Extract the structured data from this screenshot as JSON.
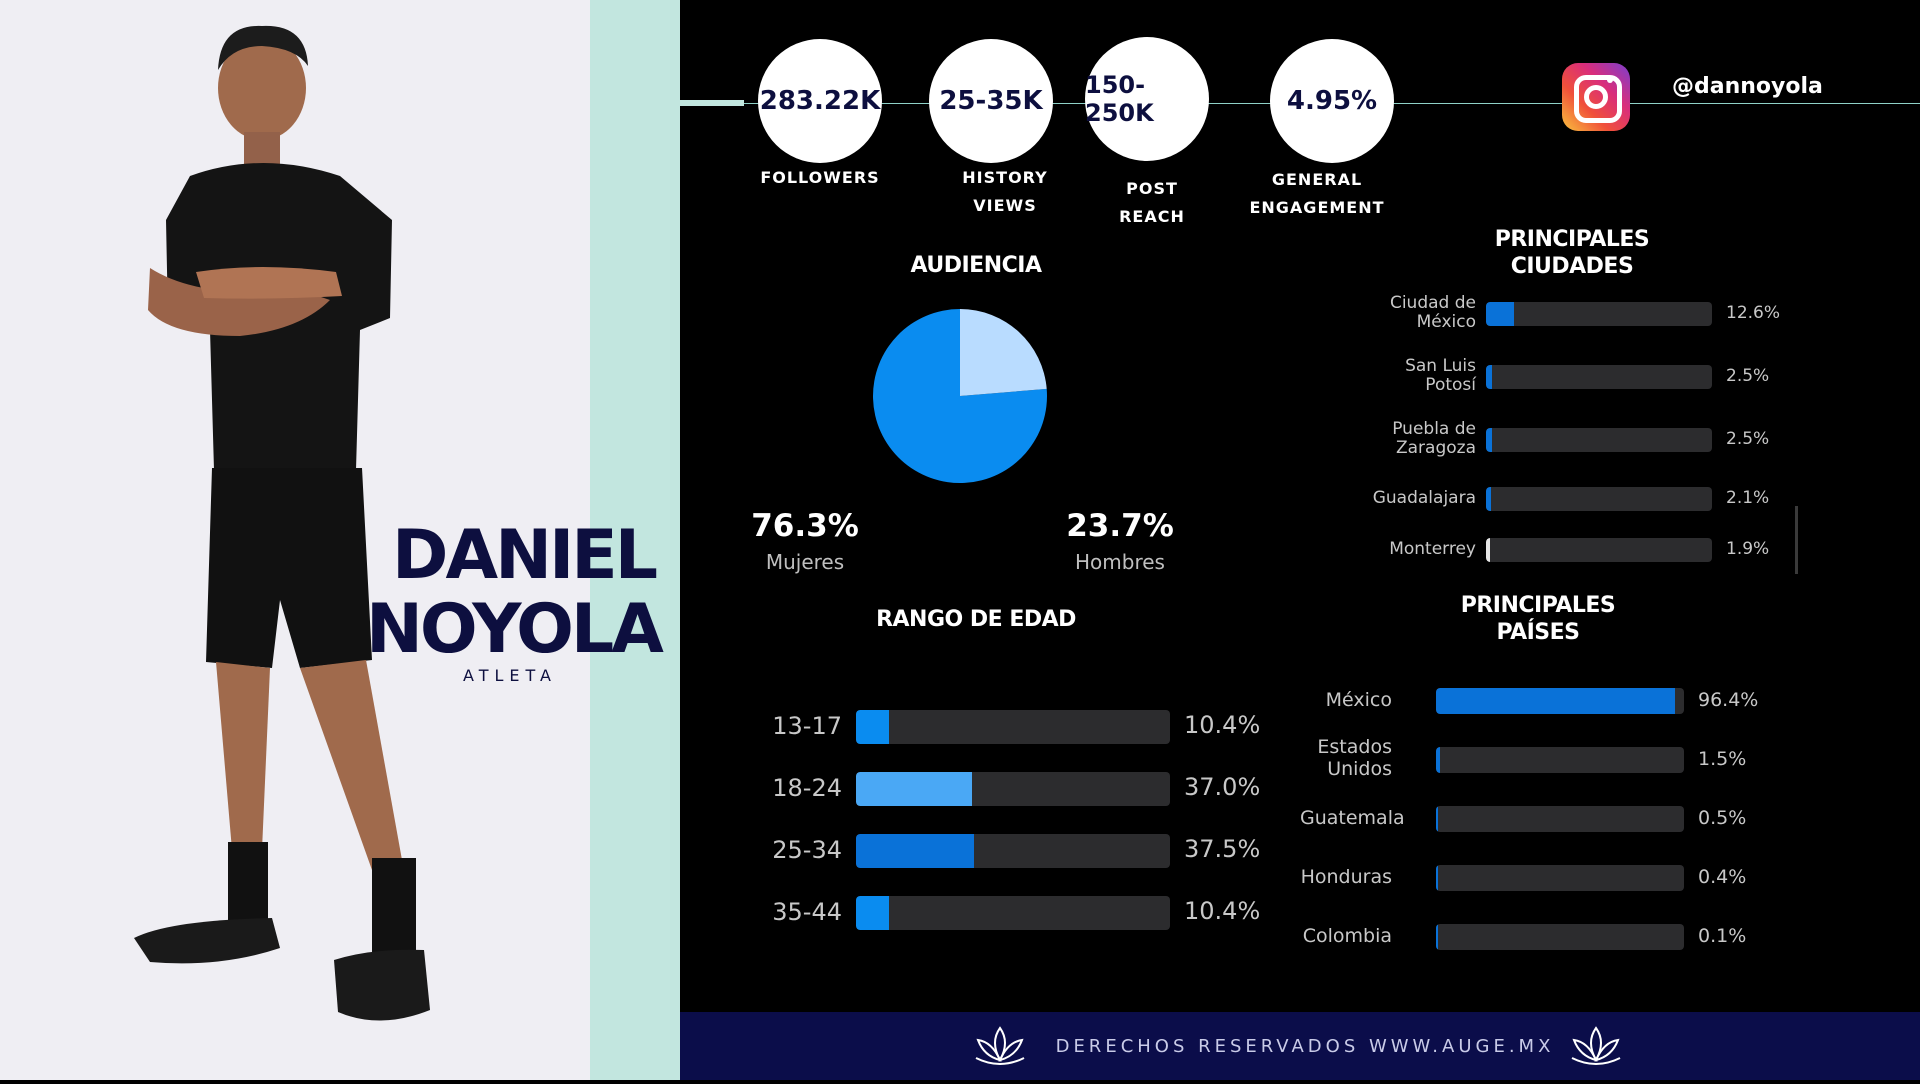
{
  "person": {
    "first_name": "DANIEL",
    "last_name": "NOYOLA",
    "role": "ATLETA"
  },
  "stats": [
    {
      "value": "283.22K",
      "label_lines": [
        "FOLLOWERS"
      ]
    },
    {
      "value": "25-35K",
      "label_lines": [
        "HISTORY",
        "VIEWS"
      ]
    },
    {
      "value": "150-250K",
      "label_lines": [
        "POST",
        "REACH"
      ]
    },
    {
      "value": "4.95%",
      "label_lines": [
        "GENERAL",
        "ENGAGEMENT"
      ]
    }
  ],
  "instagram": {
    "handle": "@dannoyola",
    "icon": "instagram-icon"
  },
  "audience": {
    "title": "AUDIENCIA",
    "women": {
      "percent": "76.3%",
      "label": "Mujeres"
    },
    "men": {
      "percent": "23.7%",
      "label": "Hombres"
    }
  },
  "age_range": {
    "title": "RANGO DE EDAD"
  },
  "cities": {
    "title_lines": [
      "PRINCIPALES",
      "CIUDADES"
    ]
  },
  "countries": {
    "title_lines": [
      "PRINCIPALES",
      "PAÍSES"
    ]
  },
  "footer": {
    "text": "DERECHOS RESERVADOS WWW.AUGE.MX",
    "icon": "lotus-icon"
  },
  "colors": {
    "accent_blue": "#0a8cf0",
    "light_blue": "#b9dcff",
    "navy": "#0d0f3f",
    "mint": "#c2e6df",
    "track": "#2c2c2e"
  },
  "chart_data": [
    {
      "type": "pie",
      "title": "AUDIENCIA",
      "categories": [
        "Mujeres",
        "Hombres"
      ],
      "values": [
        76.3,
        23.7
      ],
      "colors": [
        "#0a8cf0",
        "#b9dcff"
      ]
    },
    {
      "type": "bar",
      "orientation": "horizontal",
      "title": "RANGO DE EDAD",
      "categories": [
        "13-17",
        "18-24",
        "25-34",
        "35-44"
      ],
      "values": [
        10.4,
        37.0,
        37.5,
        10.4
      ],
      "value_labels": [
        "10.4%",
        "37.0%",
        "37.5%",
        "10.4%"
      ],
      "colors": [
        "#0a8cf0",
        "#4aa8f5",
        "#0a72d8",
        "#0a8cf0"
      ]
    },
    {
      "type": "bar",
      "orientation": "horizontal",
      "title": "PRINCIPALES CIUDADES",
      "categories": [
        "Ciudad de México",
        "San Luis Potosí",
        "Puebla de Zaragoza",
        "Guadalajara",
        "Monterrey"
      ],
      "category_lines": [
        [
          "Ciudad de",
          "México"
        ],
        [
          "San Luis",
          "Potosí"
        ],
        [
          "Puebla de",
          "Zaragoza"
        ],
        [
          "Guadalajara"
        ],
        [
          "Monterrey"
        ]
      ],
      "values": [
        12.6,
        2.5,
        2.5,
        2.1,
        1.9
      ],
      "value_labels": [
        "12.6%",
        "2.5%",
        "2.5%",
        "2.1%",
        "1.9%"
      ],
      "colors": [
        "#0a72d8",
        "#0a72d8",
        "#0a72d8",
        "#0a72d8",
        "#e6e6e6"
      ]
    },
    {
      "type": "bar",
      "orientation": "horizontal",
      "title": "PRINCIPALES PAÍSES",
      "categories": [
        "México",
        "Estados Unidos",
        "Guatemala",
        "Honduras",
        "Colombia"
      ],
      "category_lines": [
        [
          "México"
        ],
        [
          "Estados",
          "Unidos"
        ],
        [
          "Guatemala"
        ],
        [
          "Honduras"
        ],
        [
          "Colombia"
        ]
      ],
      "values": [
        96.4,
        1.5,
        0.5,
        0.4,
        0.1
      ],
      "value_labels": [
        "96.4%",
        "1.5%",
        "0.5%",
        "0.4%",
        "0.1%"
      ],
      "colors": [
        "#0a72d8",
        "#0a72d8",
        "#0a72d8",
        "#0a72d8",
        "#0a72d8"
      ]
    }
  ]
}
